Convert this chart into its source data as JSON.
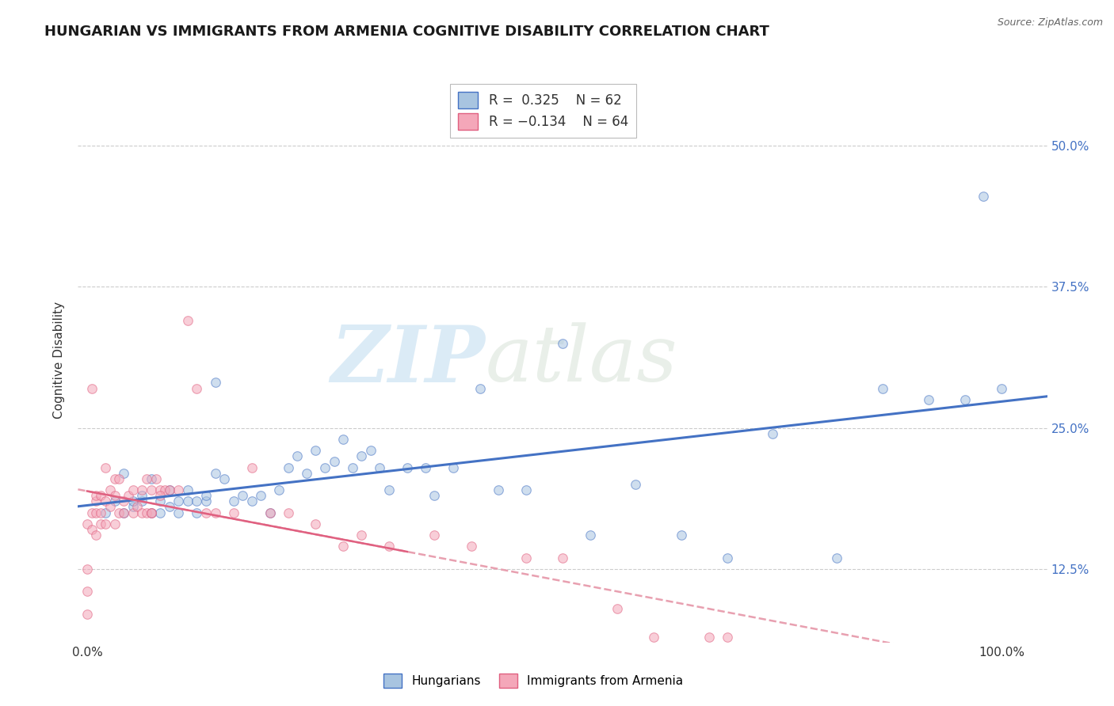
{
  "title": "HUNGARIAN VS IMMIGRANTS FROM ARMENIA COGNITIVE DISABILITY CORRELATION CHART",
  "source": "Source: ZipAtlas.com",
  "ylabel": "Cognitive Disability",
  "xlabel": "",
  "background_color": "#ffffff",
  "watermark_text": "ZIP",
  "watermark_text2": "atlas",
  "legend": {
    "hungarian": {
      "R": 0.325,
      "N": 62,
      "color": "#a8c4e0",
      "line_color": "#4472c4"
    },
    "armenia": {
      "R": -0.134,
      "N": 64,
      "color": "#f4a7b9",
      "line_color": "#e06080"
    }
  },
  "y_ticks": [
    0.125,
    0.25,
    0.375,
    0.5
  ],
  "y_tick_labels": [
    "12.5%",
    "25.0%",
    "37.5%",
    "50.0%"
  ],
  "ylim": [
    0.06,
    0.56
  ],
  "xlim": [
    -0.01,
    1.05
  ],
  "hungarian_scatter": {
    "x": [
      0.02,
      0.03,
      0.04,
      0.04,
      0.05,
      0.05,
      0.06,
      0.06,
      0.07,
      0.07,
      0.08,
      0.08,
      0.09,
      0.09,
      0.1,
      0.1,
      0.11,
      0.11,
      0.12,
      0.12,
      0.13,
      0.13,
      0.14,
      0.14,
      0.15,
      0.16,
      0.17,
      0.18,
      0.19,
      0.2,
      0.21,
      0.22,
      0.23,
      0.24,
      0.25,
      0.26,
      0.27,
      0.28,
      0.29,
      0.3,
      0.31,
      0.32,
      0.33,
      0.35,
      0.37,
      0.38,
      0.4,
      0.43,
      0.45,
      0.48,
      0.52,
      0.55,
      0.6,
      0.65,
      0.7,
      0.75,
      0.82,
      0.87,
      0.92,
      0.96,
      0.98,
      1.0
    ],
    "y": [
      0.175,
      0.185,
      0.175,
      0.21,
      0.18,
      0.185,
      0.185,
      0.19,
      0.175,
      0.205,
      0.175,
      0.185,
      0.18,
      0.195,
      0.175,
      0.185,
      0.195,
      0.185,
      0.175,
      0.185,
      0.185,
      0.19,
      0.29,
      0.21,
      0.205,
      0.185,
      0.19,
      0.185,
      0.19,
      0.175,
      0.195,
      0.215,
      0.225,
      0.21,
      0.23,
      0.215,
      0.22,
      0.24,
      0.215,
      0.225,
      0.23,
      0.215,
      0.195,
      0.215,
      0.215,
      0.19,
      0.215,
      0.285,
      0.195,
      0.195,
      0.325,
      0.155,
      0.2,
      0.155,
      0.135,
      0.245,
      0.135,
      0.285,
      0.275,
      0.275,
      0.455,
      0.285
    ]
  },
  "armenia_scatter": {
    "x": [
      0.0,
      0.0,
      0.0,
      0.0,
      0.005,
      0.005,
      0.005,
      0.01,
      0.01,
      0.01,
      0.01,
      0.015,
      0.015,
      0.015,
      0.02,
      0.02,
      0.02,
      0.025,
      0.025,
      0.03,
      0.03,
      0.03,
      0.035,
      0.035,
      0.04,
      0.04,
      0.045,
      0.05,
      0.05,
      0.055,
      0.06,
      0.06,
      0.065,
      0.065,
      0.07,
      0.07,
      0.075,
      0.08,
      0.085,
      0.09,
      0.1,
      0.11,
      0.12,
      0.13,
      0.14,
      0.16,
      0.18,
      0.2,
      0.22,
      0.25,
      0.28,
      0.3,
      0.33,
      0.38,
      0.42,
      0.48,
      0.52,
      0.58,
      0.62,
      0.65,
      0.68,
      0.7,
      0.07,
      0.08
    ],
    "y": [
      0.085,
      0.105,
      0.125,
      0.165,
      0.16,
      0.175,
      0.285,
      0.155,
      0.175,
      0.185,
      0.19,
      0.165,
      0.175,
      0.19,
      0.165,
      0.185,
      0.215,
      0.18,
      0.195,
      0.165,
      0.19,
      0.205,
      0.175,
      0.205,
      0.175,
      0.185,
      0.19,
      0.175,
      0.195,
      0.18,
      0.175,
      0.195,
      0.175,
      0.205,
      0.175,
      0.195,
      0.205,
      0.195,
      0.195,
      0.195,
      0.195,
      0.345,
      0.285,
      0.175,
      0.175,
      0.175,
      0.215,
      0.175,
      0.175,
      0.165,
      0.145,
      0.155,
      0.145,
      0.155,
      0.145,
      0.135,
      0.135,
      0.09,
      0.065,
      0.055,
      0.065,
      0.065,
      0.175,
      0.19
    ]
  },
  "grid_color": "#cccccc",
  "scatter_size": 70,
  "scatter_alpha": 0.55,
  "trendline_hungarian_color": "#4472c4",
  "trendline_armenia_color": "#e8a0b0",
  "title_fontsize": 13,
  "label_fontsize": 11,
  "tick_fontsize": 11
}
